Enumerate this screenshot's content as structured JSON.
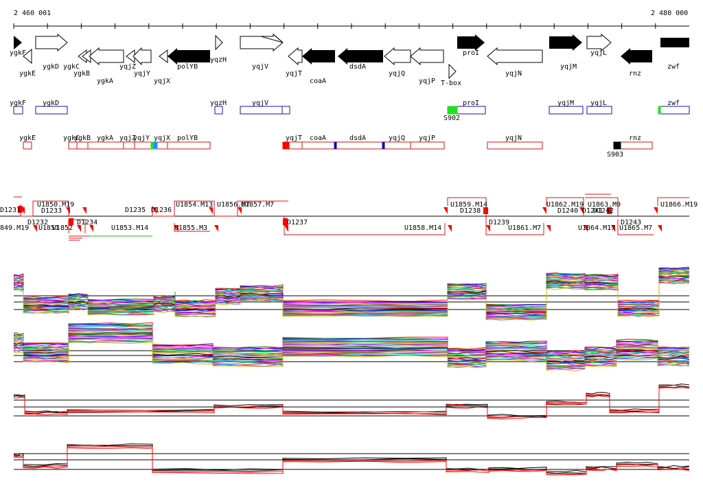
{
  "ruler": {
    "start_label": "2 460 001",
    "end_label": "2 480 000"
  },
  "genes_strand_plus": [
    "ygkF",
    "ygkD",
    "yqzH",
    "yqjV",
    "proI",
    "yqjM",
    "yqjL",
    "zwf"
  ],
  "genes_strand_minus": [
    "ygkE",
    "ygkC",
    "ygkB",
    "ygkA",
    "yqjZ",
    "yqjY",
    "yqjX",
    "polYB",
    "yqjT",
    "coaA",
    "dsdA",
    "yqjQ",
    "yqjP",
    "yqjN",
    "rnz"
  ],
  "regulatory_element": "T-box",
  "transcripts_forward": [
    "ygkF",
    "ygkD",
    "yqzH",
    "yqjV",
    "proI",
    "yqjM",
    "yqjL",
    "zwf"
  ],
  "transcripts_reverse": [
    "ygkE",
    "ygkC",
    "ygkB",
    "ygkA",
    "yqjZ",
    "yqjY",
    "yqjX",
    "polYB",
    "yqjT",
    "coaA",
    "dsdA",
    "yqjQ",
    "yqjP",
    "yqjN",
    "rnz"
  ],
  "promoter_labels": [
    "S902",
    "S903"
  ],
  "segments_upper": [
    "U1850.M19",
    "U1854.M13",
    "U1856.M7",
    "U1857.M7",
    "U1859.M14",
    "U1862.M19",
    "U1863.M9",
    "U1866.M19"
  ],
  "segments_upper_left": [
    "D1231",
    "D1233",
    "D1235",
    "D1236",
    "D1238",
    "D1240",
    "D1241",
    "D1242"
  ],
  "segments_lower": [
    "849.M19",
    "D1232",
    "U1851",
    "U1852",
    "D1234",
    "U1853.M14",
    "U1855.M3",
    "D1237",
    "U1858.M14",
    "D1239",
    "U1861.M7",
    "U1864.M17",
    "U1865.M7",
    "D1243"
  ],
  "colors": {
    "gene_fill_dark": "#000000",
    "transcript_plus": "#1010b0",
    "transcript_minus": "#d01010",
    "promoter_green": "#20e020",
    "promoter_black": "#000000",
    "marker_red": "#ff0000",
    "trace_black": "#000000",
    "trace_red": "#ff0000"
  },
  "profiles": [
    {
      "name": "plus-strand multi-condition"
    },
    {
      "name": "minus-strand multi-condition"
    },
    {
      "name": "plus-strand summary"
    },
    {
      "name": "minus-strand summary"
    }
  ]
}
